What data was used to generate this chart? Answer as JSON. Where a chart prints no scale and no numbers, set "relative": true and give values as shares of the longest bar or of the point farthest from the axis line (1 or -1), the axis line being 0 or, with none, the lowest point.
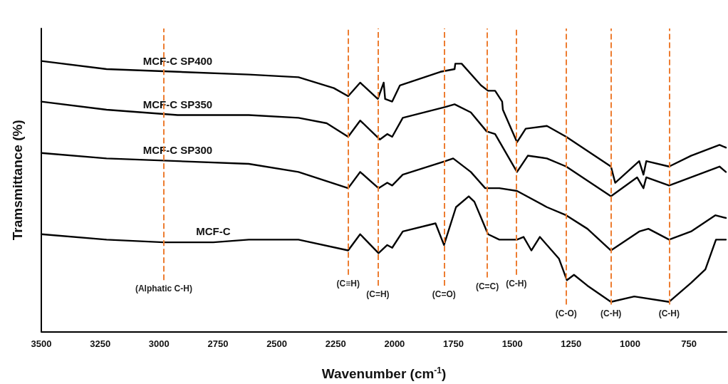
{
  "chart_data": {
    "type": "line",
    "xlabel": "Wavenumber (cm$^{-1}$)",
    "ylabel": "Tramsmittance (%)",
    "relative": true,
    "xlim": [
      3500,
      590
    ],
    "xticks": [
      3500,
      3250,
      3000,
      2750,
      2500,
      2250,
      2000,
      1750,
      1500,
      1250,
      1000,
      750
    ],
    "grid": false,
    "legend": false,
    "marker": "none",
    "line_style": "solid",
    "series": [
      {
        "name": "MCF-C SP400",
        "color": "#000000",
        "x": [
          3500,
          3223,
          2921,
          2619,
          2408,
          2258,
          2197,
          2146,
          2071,
          2046,
          2040,
          2010,
          1977,
          1805,
          1745,
          1742,
          1715,
          1633,
          1603,
          1573,
          1543,
          1540,
          1480,
          1443,
          1353,
          1271,
          1081,
          1063,
          961,
          943,
          931,
          834,
          741,
          620,
          593
        ],
        "values": [
          1.0,
          0.97,
          0.96,
          0.95,
          0.94,
          0.9,
          0.87,
          0.92,
          0.86,
          0.92,
          0.86,
          0.85,
          0.91,
          0.96,
          0.97,
          0.99,
          0.99,
          0.91,
          0.89,
          0.89,
          0.85,
          0.82,
          0.7,
          0.75,
          0.76,
          0.72,
          0.61,
          0.55,
          0.63,
          0.58,
          0.63,
          0.61,
          0.65,
          0.69,
          0.68
        ]
      },
      {
        "name": "MCF-C SP350",
        "color": "#000000",
        "x": [
          3500,
          3223,
          2921,
          2619,
          2408,
          2288,
          2197,
          2146,
          2062,
          2031,
          2010,
          1965,
          1784,
          1745,
          1676,
          1609,
          1573,
          1480,
          1434,
          1353,
          1271,
          1081,
          970,
          943,
          931,
          834,
          741,
          620,
          593
        ],
        "values": [
          0.85,
          0.82,
          0.8,
          0.8,
          0.79,
          0.77,
          0.72,
          0.78,
          0.71,
          0.73,
          0.72,
          0.79,
          0.83,
          0.84,
          0.81,
          0.74,
          0.73,
          0.59,
          0.65,
          0.64,
          0.61,
          0.5,
          0.57,
          0.53,
          0.57,
          0.54,
          0.57,
          0.61,
          0.59
        ]
      },
      {
        "name": "MCF-C SP300",
        "color": "#000000",
        "x": [
          3500,
          3223,
          2921,
          2619,
          2408,
          2197,
          2146,
          2068,
          2031,
          2010,
          1965,
          1784,
          1751,
          1676,
          1615,
          1555,
          1480,
          1353,
          1271,
          1181,
          1081,
          961,
          922,
          834,
          741,
          638,
          593
        ],
        "values": [
          0.66,
          0.64,
          0.63,
          0.62,
          0.59,
          0.53,
          0.59,
          0.53,
          0.55,
          0.54,
          0.58,
          0.63,
          0.64,
          0.59,
          0.53,
          0.53,
          0.52,
          0.46,
          0.43,
          0.38,
          0.3,
          0.37,
          0.38,
          0.34,
          0.37,
          0.43,
          0.42
        ]
      },
      {
        "name": "MCF-C",
        "color": "#000000",
        "x": [
          3500,
          3223,
          2981,
          2770,
          2619,
          2408,
          2197,
          2146,
          2068,
          2031,
          2010,
          1965,
          1826,
          1790,
          1739,
          1685,
          1661,
          1603,
          1555,
          1480,
          1452,
          1419,
          1383,
          1302,
          1268,
          1238,
          1181,
          1081,
          982,
          834,
          741,
          680,
          635,
          593
        ],
        "values": [
          0.36,
          0.34,
          0.33,
          0.33,
          0.34,
          0.34,
          0.3,
          0.36,
          0.29,
          0.32,
          0.31,
          0.37,
          0.4,
          0.32,
          0.46,
          0.5,
          0.48,
          0.36,
          0.34,
          0.34,
          0.35,
          0.3,
          0.35,
          0.27,
          0.19,
          0.21,
          0.17,
          0.11,
          0.13,
          0.11,
          0.18,
          0.23,
          0.34,
          0.34
        ]
      }
    ],
    "ref_lines": [
      {
        "axis": "x",
        "value": 2980,
        "label": "(Alphatic C-H)",
        "color": "#ed7d31",
        "line_style": "dashed"
      },
      {
        "axis": "x",
        "value": 2197,
        "label": "(C≡H)",
        "color": "#ed7d31",
        "line_style": "dashed"
      },
      {
        "axis": "x",
        "value": 2071,
        "label": "(C=H)",
        "color": "#ed7d31",
        "line_style": "dashed"
      },
      {
        "axis": "x",
        "value": 1790,
        "label": "(C=O)",
        "color": "#ed7d31",
        "line_style": "dashed"
      },
      {
        "axis": "x",
        "value": 1606,
        "label": "(C=C)",
        "color": "#ed7d31",
        "line_style": "dashed"
      },
      {
        "axis": "x",
        "value": 1483,
        "label": "(C-H)",
        "color": "#ed7d31",
        "line_style": "dashed"
      },
      {
        "axis": "x",
        "value": 1271,
        "label": "(C-O)",
        "color": "#ed7d31",
        "line_style": "dashed"
      },
      {
        "axis": "x",
        "value": 1081,
        "label": "(C-H)",
        "color": "#ed7d31",
        "line_style": "dashed"
      },
      {
        "axis": "x",
        "value": 834,
        "label": "(C-H)",
        "color": "#ed7d31",
        "line_style": "dashed"
      }
    ]
  }
}
